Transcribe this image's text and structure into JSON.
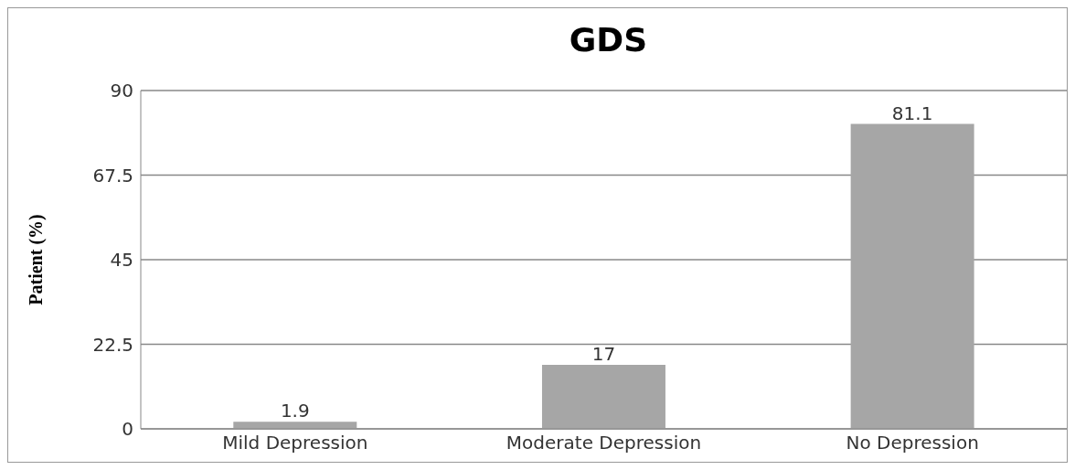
{
  "chart_data": {
    "type": "bar",
    "title": "GDS",
    "ylabel": "Patient (%)",
    "categories": [
      "Mild Depression",
      "Moderate Depression",
      "No Depression"
    ],
    "values": [
      1.9,
      17,
      81.1
    ],
    "color": "#a6a6a6",
    "ylim": [
      0,
      90
    ],
    "yticks": [
      0,
      22.5,
      45,
      67.5,
      90
    ],
    "grid": "y",
    "data_labels": true
  }
}
